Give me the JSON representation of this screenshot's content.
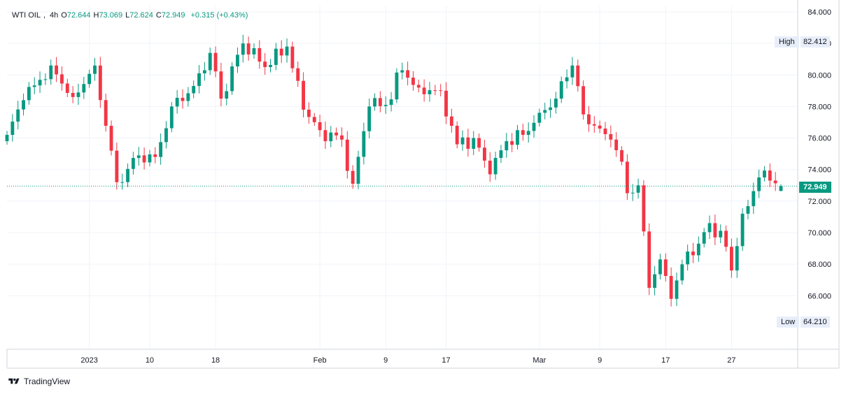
{
  "legend": {
    "symbol": "WTI OIL",
    "interval": "4h",
    "o_label": "O",
    "o_value": "72.644",
    "h_label": "H",
    "h_value": "73.069",
    "l_label": "L",
    "l_value": "72.624",
    "c_label": "C",
    "c_value": "72.949",
    "change": "+0.315 (+0.43%)"
  },
  "high_marker": {
    "label": "High",
    "value": "82.412"
  },
  "low_marker": {
    "label": "Low",
    "value": "64.210"
  },
  "last_price": {
    "value": "72.949",
    "color": "#089981"
  },
  "brand": {
    "name": "TradingView"
  },
  "colors": {
    "up": "#089981",
    "down": "#f23645",
    "grid": "#f0f3fa",
    "axis_text": "#131722"
  },
  "chart_data": {
    "type": "candlestick",
    "title": "WTI OIL",
    "interval": "4h",
    "y_axis_position": "right",
    "ylim": [
      62.6,
      84.4
    ],
    "y_ticks": [
      "84.000",
      "82.000",
      "80.000",
      "78.000",
      "76.000",
      "74.000",
      "72.000",
      "70.000",
      "68.000",
      "66.000"
    ],
    "x_tick_labels": [
      "2023",
      "10",
      "18",
      "Feb",
      "9",
      "17",
      "Mar",
      "9",
      "17",
      "27"
    ],
    "x_tick_bar_index": [
      15,
      26,
      38,
      57,
      69,
      80,
      97,
      108,
      120,
      132
    ],
    "grid": true,
    "high": 82.412,
    "low": 64.21,
    "last_close": 72.949,
    "anchors": [
      [
        0,
        76.2
      ],
      [
        3,
        78.4
      ],
      [
        8,
        80.6
      ],
      [
        12,
        78.6
      ],
      [
        16,
        80.6
      ],
      [
        20,
        73.2
      ],
      [
        24,
        74.9
      ],
      [
        27,
        74.8
      ],
      [
        30,
        78.0
      ],
      [
        34,
        79.3
      ],
      [
        37,
        81.4
      ],
      [
        39,
        78.5
      ],
      [
        43,
        82.0
      ],
      [
        47,
        80.5
      ],
      [
        51,
        81.8
      ],
      [
        54,
        77.8
      ],
      [
        57,
        76.5
      ],
      [
        61,
        75.9
      ],
      [
        63,
        73.1
      ],
      [
        66,
        78.0
      ],
      [
        69,
        78.1
      ],
      [
        72,
        80.3
      ],
      [
        75,
        79.2
      ],
      [
        79,
        79.0
      ],
      [
        82,
        75.6
      ],
      [
        85,
        76.0
      ],
      [
        88,
        73.7
      ],
      [
        91,
        75.8
      ],
      [
        94,
        76.2
      ],
      [
        97,
        77.6
      ],
      [
        100,
        78.5
      ],
      [
        101,
        79.6
      ],
      [
        103,
        80.6
      ],
      [
        105,
        77.5
      ],
      [
        108,
        76.6
      ],
      [
        110,
        75.9
      ],
      [
        112,
        74.5
      ],
      [
        113,
        72.5
      ],
      [
        115,
        73.0
      ],
      [
        117,
        66.5
      ],
      [
        119,
        68.3
      ],
      [
        121,
        65.8
      ],
      [
        124,
        68.8
      ],
      [
        126,
        69.3
      ],
      [
        128,
        70.6
      ],
      [
        131,
        69.1
      ],
      [
        132,
        67.6
      ],
      [
        134,
        71.2
      ],
      [
        137,
        73.5
      ],
      [
        139,
        73.3
      ],
      [
        141,
        72.95
      ]
    ],
    "last_candle": {
      "o": 72.644,
      "h": 73.069,
      "l": 72.624,
      "c": 72.949
    }
  }
}
